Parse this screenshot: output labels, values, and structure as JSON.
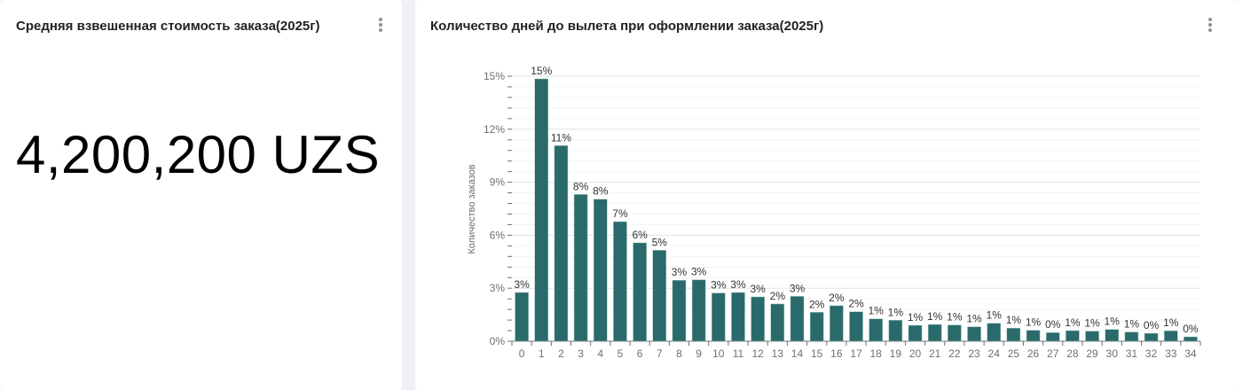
{
  "kpi_card": {
    "title": "Средняя взвешенная стоимость заказа(2025г)",
    "value": "4,200,200 UZS",
    "menu_icon": "kebab-menu-icon"
  },
  "chart_card": {
    "title": "Количество дней до вылета при оформлении заказа(2025г)",
    "menu_icon": "kebab-menu-icon"
  },
  "chart_data": {
    "type": "bar",
    "title": "Количество дней до вылета при оформлении заказа(2025г)",
    "xlabel": "",
    "ylabel": "Количество заказов",
    "ylim": [
      0,
      15
    ],
    "yticks": [
      "0%",
      "3%",
      "6%",
      "9%",
      "12%",
      "15%"
    ],
    "grid": true,
    "bar_color": "#2b6a6a",
    "categories": [
      "0",
      "1",
      "2",
      "3",
      "4",
      "5",
      "6",
      "7",
      "8",
      "9",
      "10",
      "11",
      "12",
      "13",
      "14",
      "15",
      "16",
      "17",
      "18",
      "19",
      "20",
      "21",
      "22",
      "23",
      "24",
      "25",
      "26",
      "27",
      "28",
      "29",
      "30",
      "31",
      "32",
      "33",
      "34"
    ],
    "values": [
      2.76,
      14.85,
      11.07,
      8.31,
      8.04,
      6.77,
      5.57,
      5.15,
      3.45,
      3.48,
      2.73,
      2.76,
      2.51,
      2.11,
      2.54,
      1.64,
      2.01,
      1.67,
      1.27,
      1.19,
      0.9,
      0.95,
      0.92,
      0.82,
      1.02,
      0.74,
      0.62,
      0.49,
      0.6,
      0.57,
      0.67,
      0.52,
      0.45,
      0.59,
      0.25
    ],
    "labels": [
      "3%",
      "15%",
      "11%",
      "8%",
      "8%",
      "7%",
      "6%",
      "5%",
      "3%",
      "3%",
      "3%",
      "3%",
      "3%",
      "2%",
      "3%",
      "2%",
      "2%",
      "2%",
      "1%",
      "1%",
      "1%",
      "1%",
      "1%",
      "1%",
      "1%",
      "1%",
      "1%",
      "0%",
      "1%",
      "1%",
      "1%",
      "1%",
      "0%",
      "1%",
      "0%"
    ]
  }
}
